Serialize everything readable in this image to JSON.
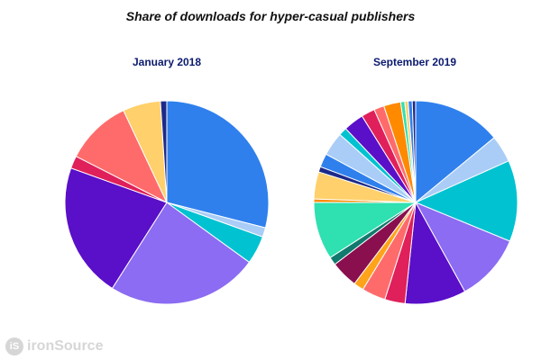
{
  "chart_data": {
    "type": "pie",
    "title": "Share of downloads for hyper-casual publishers",
    "charts": [
      {
        "subtitle": "January 2018",
        "slices": [
          {
            "value": 29.0,
            "color": "#2f80ed"
          },
          {
            "value": 1.5,
            "color": "#a9cdf7"
          },
          {
            "value": 4.5,
            "color": "#00c2d1"
          },
          {
            "value": 24.0,
            "color": "#8b6cf2"
          },
          {
            "value": 21.5,
            "color": "#5a0fc8"
          },
          {
            "value": 2.0,
            "color": "#e0205a"
          },
          {
            "value": 10.5,
            "color": "#ff6b6b"
          },
          {
            "value": 6.0,
            "color": "#ffd06b"
          },
          {
            "value": 1.0,
            "color": "#1d2a8a"
          }
        ]
      },
      {
        "subtitle": "September 2019",
        "slices": [
          {
            "value": 13.0,
            "color": "#2f80ed"
          },
          {
            "value": 4.0,
            "color": "#a9cdf7"
          },
          {
            "value": 12.0,
            "color": "#00c2d1"
          },
          {
            "value": 10.0,
            "color": "#8b6cf2"
          },
          {
            "value": 9.0,
            "color": "#5a0fc8"
          },
          {
            "value": 3.0,
            "color": "#e0205a"
          },
          {
            "value": 3.5,
            "color": "#ff6b6b"
          },
          {
            "value": 1.5,
            "color": "#ffa31a"
          },
          {
            "value": 4.0,
            "color": "#8a0f4f"
          },
          {
            "value": 1.2,
            "color": "#117a6e"
          },
          {
            "value": 8.5,
            "color": "#2fe0b0"
          },
          {
            "value": 0.5,
            "color": "#ff8a00"
          },
          {
            "value": 4.0,
            "color": "#ffd06b"
          },
          {
            "value": 0.8,
            "color": "#1d2a8a"
          },
          {
            "value": 2.0,
            "color": "#2f80ed"
          },
          {
            "value": 3.5,
            "color": "#a9cdf7"
          },
          {
            "value": 1.2,
            "color": "#00c2d1"
          },
          {
            "value": 3.0,
            "color": "#5a0fc8"
          },
          {
            "value": 2.0,
            "color": "#e0205a"
          },
          {
            "value": 1.5,
            "color": "#ff6b6b"
          },
          {
            "value": 2.5,
            "color": "#ff8a00"
          },
          {
            "value": 0.6,
            "color": "#2fe0b0"
          },
          {
            "value": 0.5,
            "color": "#ffd06b"
          },
          {
            "value": 0.6,
            "color": "#2f80ed"
          },
          {
            "value": 0.5,
            "color": "#1d2a8a"
          }
        ]
      }
    ]
  },
  "watermark": {
    "logo_glyph": "iS",
    "text": "ironSource"
  }
}
